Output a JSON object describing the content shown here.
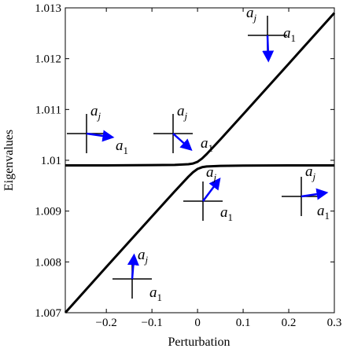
{
  "chart_data": {
    "type": "line",
    "x_label": "Perturbation",
    "y_label": "Eigenvalues",
    "x": [
      -0.29,
      -0.2,
      -0.1,
      -0.05,
      -0.02,
      -0.01,
      0,
      0.01,
      0.02,
      0.05,
      0.1,
      0.2,
      0.3
    ],
    "series": [
      {
        "color": "#000000",
        "values": [
          1.0099,
          1.0099,
          1.009905,
          1.00991,
          1.009922,
          1.009936,
          1.00997,
          1.010036,
          1.010122,
          1.01041,
          1.010905,
          1.0119,
          1.0129
        ]
      },
      {
        "color": "#000000",
        "values": [
          1.007,
          1.0079,
          1.008895,
          1.00939,
          1.009678,
          1.009764,
          1.00983,
          1.009864,
          1.009878,
          1.00989,
          1.009895,
          1.0099,
          1.0099
        ]
      }
    ],
    "xlim": [
      -0.29,
      0.3
    ],
    "xticks": [
      {
        "value": -0.2,
        "label": "−0.2"
      },
      {
        "value": -0.1,
        "label": "−0.1"
      },
      0,
      0.1,
      0.2,
      0.3
    ],
    "ylim": [
      1.007,
      1.013
    ],
    "yticks": [
      1.007,
      1.008,
      1.009,
      1.01,
      1.011,
      1.012,
      1.013
    ],
    "inset_labels": {
      "upper": {
        "text": "a",
        "sub": "j"
      },
      "lower": {
        "text": "a",
        "sub": "1"
      }
    },
    "arrow_color": "#0000ff"
  }
}
